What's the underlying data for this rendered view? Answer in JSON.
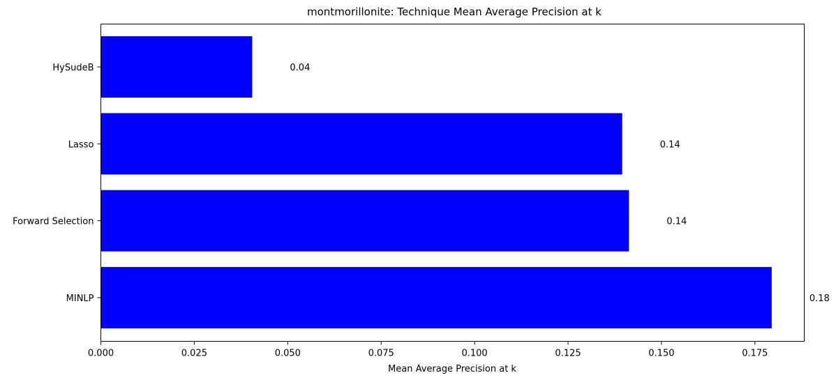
{
  "chart_data": {
    "type": "bar",
    "orientation": "horizontal",
    "title": "montmorillonite: Technique Mean Average Precision at k",
    "xlabel": "Mean Average Precision at k",
    "ylabel": "",
    "categories": [
      "HySudeB",
      "Lasso",
      "Forward Selection",
      "MINLP"
    ],
    "values": [
      0.0405,
      0.1395,
      0.1413,
      0.1795
    ],
    "value_labels": [
      "0.04",
      "0.14",
      "0.14",
      "0.18"
    ],
    "xlim": [
      0.0,
      0.1882
    ],
    "xticks": [
      0.0,
      0.025,
      0.05,
      0.075,
      0.1,
      0.125,
      0.15,
      0.175
    ],
    "xtick_labels": [
      "0.000",
      "0.025",
      "0.050",
      "0.075",
      "0.100",
      "0.125",
      "0.150",
      "0.175"
    ],
    "bar_color": "#0000ff",
    "grid": false,
    "legend": "none"
  }
}
